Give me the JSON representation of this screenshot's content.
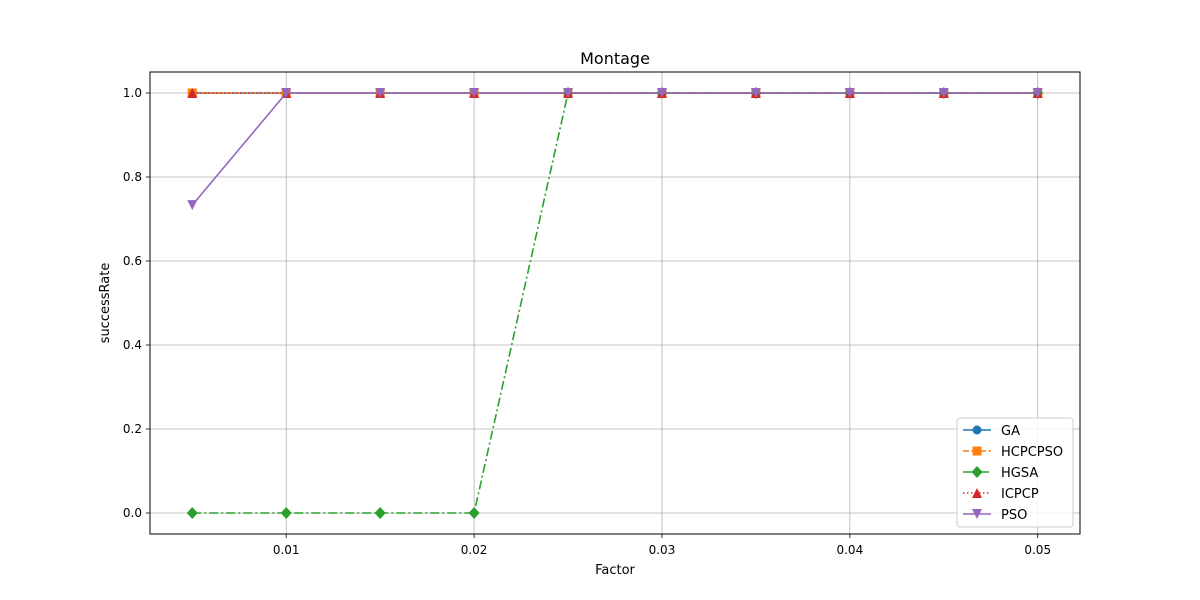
{
  "chart_data": {
    "type": "line",
    "title": "Montage",
    "xlabel": "Factor",
    "ylabel": "successRate",
    "x": [
      0.005,
      0.01,
      0.015,
      0.02,
      0.025,
      0.03,
      0.035,
      0.04,
      0.045,
      0.05
    ],
    "xlim": [
      0.00275,
      0.05225
    ],
    "ylim": [
      -0.05,
      1.05
    ],
    "xticks": [
      0.01,
      0.02,
      0.03,
      0.04,
      0.05
    ],
    "xtick_labels": [
      "0.01",
      "0.02",
      "0.03",
      "0.04",
      "0.05"
    ],
    "yticks": [
      0.0,
      0.2,
      0.4,
      0.6,
      0.8,
      1.0
    ],
    "ytick_labels": [
      "0.0",
      "0.2",
      "0.4",
      "0.6",
      "0.8",
      "1.0"
    ],
    "grid": true,
    "legend_position": "lower-right",
    "series": [
      {
        "name": "GA",
        "color": "#1f77b4",
        "marker": "circle",
        "linestyle": "solid",
        "values": [
          1,
          1,
          1,
          1,
          1,
          1,
          1,
          1,
          1,
          1
        ]
      },
      {
        "name": "HCPCPSO",
        "color": "#ff7f0e",
        "marker": "square",
        "linestyle": "dashed",
        "values": [
          1,
          1,
          1,
          1,
          1,
          1,
          1,
          1,
          1,
          1
        ]
      },
      {
        "name": "HGSA",
        "color": "#2ca02c",
        "marker": "diamond",
        "linestyle": "dashdot",
        "values": [
          0,
          0,
          0,
          0,
          1,
          1,
          1,
          1,
          1,
          1
        ]
      },
      {
        "name": "ICPCP",
        "color": "#d62728",
        "marker": "triangle-up",
        "linestyle": "dotted",
        "values": [
          1,
          1,
          1,
          1,
          1,
          1,
          1,
          1,
          1,
          1
        ]
      },
      {
        "name": "PSO",
        "color": "#9467bd",
        "marker": "triangle-down",
        "linestyle": "solid",
        "values": [
          0.733,
          1,
          1,
          1,
          1,
          1,
          1,
          1,
          1,
          1
        ]
      }
    ]
  }
}
